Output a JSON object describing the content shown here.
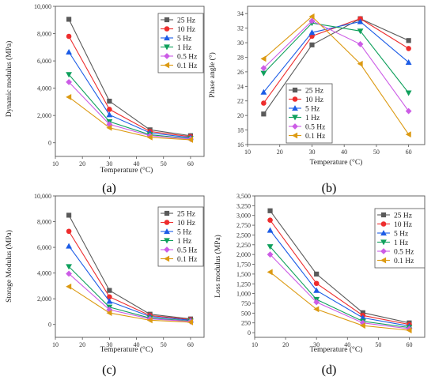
{
  "chart_data": [
    {
      "type": "line",
      "caption": "(a)",
      "xlabel": "Temperature (°C)",
      "ylabel": "Dynamic modulus (MPa)",
      "xlim": [
        10,
        65
      ],
      "ylim": [
        -1000,
        10000
      ],
      "xticks": [
        "10",
        "20",
        "30",
        "40",
        "50",
        "60"
      ],
      "yticks": [
        "0",
        "2,000",
        "4,000",
        "6,000",
        "8,000",
        "10,000"
      ],
      "legend_position": "top-right",
      "x": [
        15,
        30,
        45,
        60
      ],
      "series": [
        {
          "name": "25 Hz",
          "values": [
            9050,
            3050,
            950,
            520
          ]
        },
        {
          "name": "10 Hz",
          "values": [
            7800,
            2450,
            830,
            450
          ]
        },
        {
          "name": "5 Hz",
          "values": [
            6650,
            2050,
            730,
            380
          ]
        },
        {
          "name": "1 Hz",
          "values": [
            5000,
            1550,
            590,
            310
          ]
        },
        {
          "name": "0.5 Hz",
          "values": [
            4450,
            1350,
            520,
            280
          ]
        },
        {
          "name": "0.1 Hz",
          "values": [
            3350,
            1100,
            400,
            220
          ]
        }
      ]
    },
    {
      "type": "line",
      "caption": "(b)",
      "xlabel": "Temperature (°C)",
      "ylabel": "Phase angle (°)",
      "xlim": [
        10,
        65
      ],
      "ylim": [
        16,
        35
      ],
      "xticks": [
        "10",
        "20",
        "30",
        "40",
        "50",
        "60"
      ],
      "yticks": [
        "16",
        "18",
        "20",
        "22",
        "24",
        "26",
        "28",
        "30",
        "32",
        "34"
      ],
      "legend_position": "bottom-center",
      "x": [
        15,
        30,
        45,
        60
      ],
      "series": [
        {
          "name": "25 Hz",
          "values": [
            20.2,
            29.7,
            33.3,
            30.3
          ]
        },
        {
          "name": "10 Hz",
          "values": [
            21.7,
            30.9,
            33.3,
            29.2
          ]
        },
        {
          "name": "5 Hz",
          "values": [
            23.2,
            31.4,
            32.9,
            27.3
          ]
        },
        {
          "name": "1 Hz",
          "values": [
            25.8,
            32.7,
            31.6,
            23.1
          ]
        },
        {
          "name": "0.5 Hz",
          "values": [
            26.5,
            33.0,
            29.8,
            20.6
          ]
        },
        {
          "name": "0.1 Hz",
          "values": [
            27.8,
            33.6,
            27.1,
            17.4
          ]
        }
      ]
    },
    {
      "type": "line",
      "caption": "(c)",
      "xlabel": "Temperature (°C)",
      "ylabel": "Storage Modulus (MPa)",
      "xlim": [
        10,
        65
      ],
      "ylim": [
        -1000,
        10000
      ],
      "xticks": [
        "10",
        "20",
        "30",
        "40",
        "50",
        "60"
      ],
      "yticks": [
        "0",
        "2,000",
        "4,000",
        "6,000",
        "8,000",
        "10,000"
      ],
      "legend_position": "top-right",
      "x": [
        15,
        30,
        45,
        60
      ],
      "series": [
        {
          "name": "25 Hz",
          "values": [
            8500,
            2650,
            800,
            430
          ]
        },
        {
          "name": "10 Hz",
          "values": [
            7250,
            2150,
            700,
            380
          ]
        },
        {
          "name": "5 Hz",
          "values": [
            6100,
            1800,
            620,
            330
          ]
        },
        {
          "name": "1 Hz",
          "values": [
            4500,
            1350,
            500,
            270
          ]
        },
        {
          "name": "0.5 Hz",
          "values": [
            3950,
            1150,
            440,
            240
          ]
        },
        {
          "name": "0.1 Hz",
          "values": [
            2950,
            900,
            330,
            180
          ]
        }
      ]
    },
    {
      "type": "line",
      "caption": "(d)",
      "xlabel": "Temperature (°C)",
      "ylabel": "Loss modulus (MPa)",
      "xlim": [
        10,
        65
      ],
      "ylim": [
        -120,
        3500
      ],
      "xticks": [
        "10",
        "20",
        "30",
        "40",
        "50",
        "60"
      ],
      "yticks": [
        "0",
        "250",
        "500",
        "750",
        "1,000",
        "1,250",
        "1,500",
        "1,750",
        "2,000",
        "2,250",
        "2,500",
        "2,750",
        "3,000",
        "3,250",
        "3,500"
      ],
      "legend_position": "top-right",
      "x": [
        15,
        30,
        45,
        60
      ],
      "series": [
        {
          "name": "25 Hz",
          "values": [
            3120,
            1500,
            510,
            250
          ]
        },
        {
          "name": "10 Hz",
          "values": [
            2880,
            1260,
            440,
            210
          ]
        },
        {
          "name": "5 Hz",
          "values": [
            2620,
            1080,
            380,
            170
          ]
        },
        {
          "name": "1 Hz",
          "values": [
            2200,
            850,
            290,
            130
          ]
        },
        {
          "name": "0.5 Hz",
          "values": [
            2000,
            780,
            250,
            100
          ]
        },
        {
          "name": "0.1 Hz",
          "values": [
            1550,
            600,
            180,
            60
          ]
        }
      ]
    }
  ],
  "series_styles": [
    {
      "color": "#5a5a5a",
      "marker": "square"
    },
    {
      "color": "#ee2d2d",
      "marker": "circle"
    },
    {
      "color": "#1c5ce6",
      "marker": "triangle-up"
    },
    {
      "color": "#0fa05c",
      "marker": "triangle-down"
    },
    {
      "color": "#cc5ce6",
      "marker": "diamond"
    },
    {
      "color": "#dc9a12",
      "marker": "triangle-left"
    }
  ]
}
